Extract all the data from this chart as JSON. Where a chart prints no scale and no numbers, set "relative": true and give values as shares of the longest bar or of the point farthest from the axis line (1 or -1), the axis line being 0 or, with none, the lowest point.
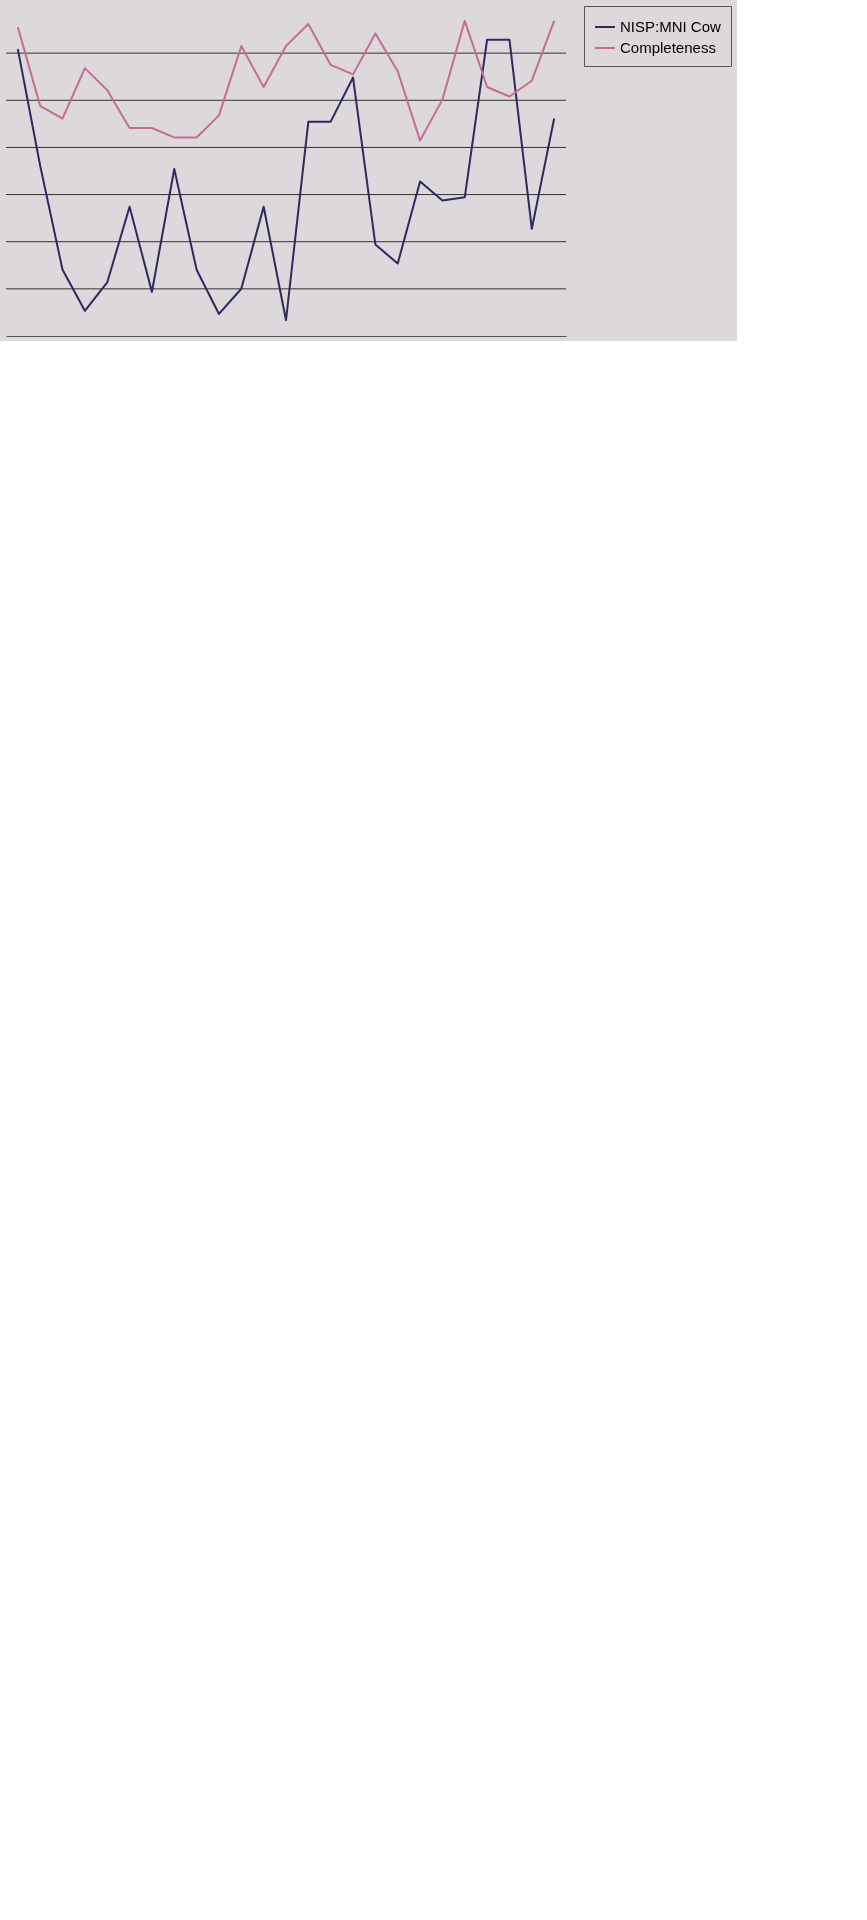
{
  "chart_data": {
    "type": "line",
    "relative": true,
    "categories": [
      null,
      null,
      null,
      null,
      null,
      null,
      null,
      null,
      null,
      null,
      null,
      null,
      null,
      null,
      null,
      null,
      null,
      null,
      null,
      null,
      null,
      null,
      null,
      null,
      null
    ],
    "series": [
      {
        "name": "NISP:MNI Cow",
        "color": "#2e2a5a",
        "values": [
          0.91,
          0.54,
          0.21,
          0.08,
          0.17,
          0.41,
          0.14,
          0.53,
          0.21,
          0.07,
          0.15,
          0.41,
          0.05,
          0.68,
          0.68,
          0.82,
          0.29,
          0.23,
          0.49,
          0.43,
          0.44,
          0.94,
          0.94,
          0.34,
          0.69
        ]
      },
      {
        "name": "Completeness",
        "color": "#c0708f",
        "values": [
          0.98,
          0.73,
          0.69,
          0.85,
          0.78,
          0.66,
          0.66,
          0.63,
          0.63,
          0.7,
          0.92,
          0.79,
          0.92,
          0.99,
          0.86,
          0.83,
          0.96,
          0.84,
          0.62,
          0.75,
          1.0,
          0.79,
          0.76,
          0.81,
          1.0
        ]
      }
    ],
    "grid": true,
    "legend": "right",
    "line_style": "solid",
    "marker": "none"
  }
}
